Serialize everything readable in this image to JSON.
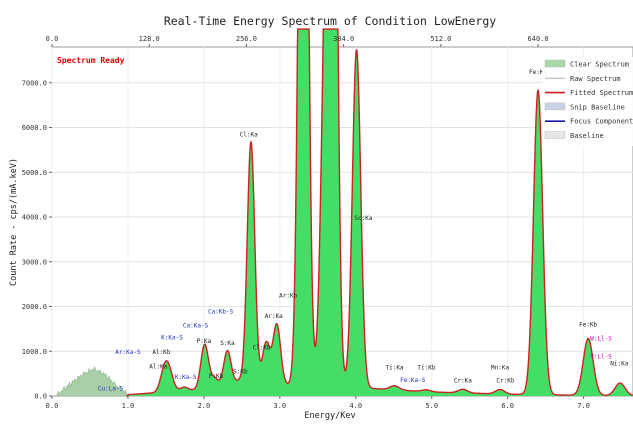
{
  "chart_data": {
    "type": "area",
    "title": "Real-Time Energy Spectrum of Condition LowEnergy",
    "status": "Spectrum Ready",
    "xlabel": "Energy/Kev",
    "ylabel": "Count Rate - cps/(mA.keV)",
    "xlim": [
      0.0,
      7.65
    ],
    "ylim": [
      0,
      7800
    ],
    "x_ticks": [
      "0.0",
      "1.0",
      "2.0",
      "3.0",
      "4.0",
      "5.0",
      "6.0",
      "7.0"
    ],
    "x_tick_values": [
      0,
      1,
      2,
      3,
      4,
      5,
      6,
      7
    ],
    "y_ticks": [
      "0.0",
      "1000.0",
      "2000.0",
      "3000.0",
      "4000.0",
      "5000.0",
      "6000.0",
      "7000.0"
    ],
    "y_tick_values": [
      0,
      1000,
      2000,
      3000,
      4000,
      5000,
      6000,
      7000
    ],
    "top_axis_ticks": [
      "0.0",
      "128.0",
      "256.0",
      "384.0",
      "512.0",
      "640.0"
    ],
    "top_axis_energy": [
      0.0,
      1.28,
      2.56,
      3.84,
      5.12,
      6.4
    ],
    "legend": [
      {
        "label": "Clear Spectrum",
        "color": "#a8d8a8",
        "kind": "fill"
      },
      {
        "label": "Raw Spectrum",
        "color": "#c8c8c8",
        "kind": "line"
      },
      {
        "label": "Fitted Spectrum",
        "color": "#d11a1a",
        "kind": "line"
      },
      {
        "label": "Snip Baseline",
        "color": "#c8d4e6",
        "kind": "fill"
      },
      {
        "label": "Focus Component",
        "color": "#1a1aa0",
        "kind": "line"
      },
      {
        "label": "Baseline",
        "color": "#e6e6e6",
        "kind": "fill"
      }
    ],
    "colors": {
      "spectrum_fill": "#44dd66",
      "fitted_line": "#cc2222",
      "noise_fill": "#a8cfa8",
      "baseline_fill": "#b8c8b8",
      "status": "#dd0000",
      "pink_label": "#cc00cc"
    },
    "continuum": [
      [
        1.0,
        30
      ],
      [
        2.0,
        150
      ],
      [
        2.5,
        220
      ],
      [
        3.0,
        250
      ],
      [
        3.5,
        240
      ],
      [
        4.0,
        190
      ],
      [
        5.0,
        90
      ],
      [
        6.0,
        40
      ],
      [
        7.0,
        15
      ],
      [
        7.65,
        8
      ]
    ],
    "low_energy_noise": [
      [
        0.05,
        0
      ],
      [
        0.2,
        220
      ],
      [
        0.4,
        480
      ],
      [
        0.55,
        610
      ],
      [
        0.7,
        480
      ],
      [
        0.85,
        230
      ],
      [
        0.98,
        60
      ],
      [
        1.05,
        0
      ]
    ],
    "peaks": [
      {
        "x": 1.49,
        "h": 580,
        "w": 0.055
      },
      {
        "x": 1.56,
        "h": 250,
        "w": 0.05
      },
      {
        "x": 1.74,
        "h": 80,
        "w": 0.05
      },
      {
        "x": 2.01,
        "h": 1000,
        "w": 0.05
      },
      {
        "x": 2.14,
        "h": 220,
        "w": 0.05
      },
      {
        "x": 2.31,
        "h": 820,
        "w": 0.05
      },
      {
        "x": 2.46,
        "h": 120,
        "w": 0.05
      },
      {
        "x": 2.62,
        "h": 5450,
        "w": 0.05
      },
      {
        "x": 2.82,
        "h": 950,
        "w": 0.05
      },
      {
        "x": 2.96,
        "h": 1350,
        "w": 0.05
      },
      {
        "x": 3.31,
        "h": 21000,
        "w": 0.055
      },
      {
        "x": 3.59,
        "h": 6200,
        "w": 0.055
      },
      {
        "x": 3.69,
        "h": 21000,
        "w": 0.055
      },
      {
        "x": 4.01,
        "h": 7550,
        "w": 0.055
      },
      {
        "x": 4.51,
        "h": 90,
        "w": 0.06
      },
      {
        "x": 4.93,
        "h": 40,
        "w": 0.06
      },
      {
        "x": 5.41,
        "h": 80,
        "w": 0.06
      },
      {
        "x": 5.9,
        "h": 100,
        "w": 0.06
      },
      {
        "x": 6.4,
        "h": 6800,
        "w": 0.06
      },
      {
        "x": 7.06,
        "h": 1270,
        "w": 0.065
      },
      {
        "x": 7.48,
        "h": 280,
        "w": 0.065
      }
    ],
    "annotations": [
      {
        "text": "Cu:La-S",
        "x": 0.77,
        "y": 120,
        "color": "#2233bb"
      },
      {
        "text": "Ar:Ka-S",
        "x": 1.0,
        "y": 940,
        "color": "#2233bb"
      },
      {
        "text": "Al:Kb",
        "x": 1.44,
        "y": 940,
        "color": "#222222"
      },
      {
        "text": "Al:Ka",
        "x": 1.4,
        "y": 620,
        "color": "#222222"
      },
      {
        "text": "K:Ka-S",
        "x": 1.58,
        "y": 1260,
        "color": "#2233bb"
      },
      {
        "text": "K:Ka-S",
        "x": 1.76,
        "y": 380,
        "color": "#2233bb"
      },
      {
        "text": "Ca:Ka-S",
        "x": 1.89,
        "y": 1530,
        "color": "#2233bb"
      },
      {
        "text": "P:Ka",
        "x": 2.0,
        "y": 1190,
        "color": "#222222"
      },
      {
        "text": "P:Kb",
        "x": 2.16,
        "y": 400,
        "color": "#222222"
      },
      {
        "text": "S:Ka",
        "x": 2.31,
        "y": 1140,
        "color": "#222222"
      },
      {
        "text": "Ca:Kb-S",
        "x": 2.22,
        "y": 1840,
        "color": "#2233bb"
      },
      {
        "text": "S:Kb",
        "x": 2.48,
        "y": 500,
        "color": "#222222"
      },
      {
        "text": "Cl:Ka",
        "x": 2.59,
        "y": 5800,
        "color": "#222222"
      },
      {
        "text": "Cl:Kb",
        "x": 2.76,
        "y": 1040,
        "color": "#222222"
      },
      {
        "text": "Ar:Ka",
        "x": 2.92,
        "y": 1740,
        "color": "#222222"
      },
      {
        "text": "Ar:Kb",
        "x": 3.11,
        "y": 2200,
        "color": "#222222"
      },
      {
        "text": "Sc:Ka",
        "x": 4.1,
        "y": 3930,
        "color": "#222222"
      },
      {
        "text": "Ti:Ka",
        "x": 4.51,
        "y": 590,
        "color": "#222222"
      },
      {
        "text": "Ti:Kb",
        "x": 4.93,
        "y": 590,
        "color": "#222222"
      },
      {
        "text": "Fe:Ka-S",
        "x": 4.75,
        "y": 310,
        "color": "#2233bb"
      },
      {
        "text": "Cr:Ka",
        "x": 5.41,
        "y": 300,
        "color": "#222222"
      },
      {
        "text": "Mn:Ka",
        "x": 5.9,
        "y": 590,
        "color": "#222222"
      },
      {
        "text": "Cr:Kb",
        "x": 5.97,
        "y": 300,
        "color": "#222222"
      },
      {
        "text": "Fe:Ka",
        "x": 6.4,
        "y": 7200,
        "color": "#222222"
      },
      {
        "text": "Fe:Kb",
        "x": 7.06,
        "y": 1550,
        "color": "#222222"
      },
      {
        "text": "W:Ll-S",
        "x": 7.23,
        "y": 1240,
        "color": "#cc00cc"
      },
      {
        "text": "V:Ll-S",
        "x": 7.23,
        "y": 840,
        "color": "#cc00cc"
      },
      {
        "text": "Ni:Ka",
        "x": 7.47,
        "y": 680,
        "color": "#222222"
      }
    ]
  }
}
